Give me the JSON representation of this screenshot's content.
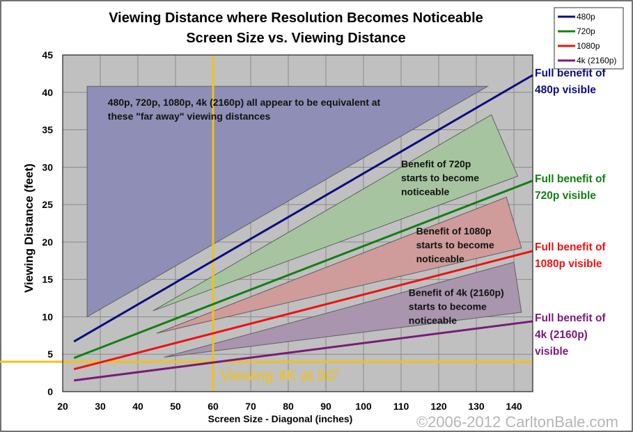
{
  "chart_data": {
    "type": "line",
    "title": "Viewing Distance where Resolution Becomes Noticeable",
    "subtitle": "Screen Size vs. Viewing Distance",
    "xlabel": "Screen Size - Diagonal (inches)",
    "ylabel": "Viewing Distance (feet)",
    "xlim": [
      20,
      145
    ],
    "ylim": [
      0,
      45
    ],
    "x_ticks": [
      20,
      30,
      40,
      50,
      60,
      70,
      80,
      90,
      100,
      110,
      120,
      130,
      140
    ],
    "y_ticks": [
      0,
      5,
      10,
      15,
      20,
      25,
      30,
      35,
      40,
      45
    ],
    "grid": true,
    "legend_position": "top-right",
    "series": [
      {
        "name": "480p",
        "color": "#0c0c80",
        "x": [
          23,
          145
        ],
        "y": [
          6.7,
          42.3
        ]
      },
      {
        "name": "720p",
        "color": "#118011",
        "x": [
          23,
          145
        ],
        "y": [
          4.5,
          28.2
        ]
      },
      {
        "name": "1080p",
        "color": "#ee1111",
        "x": [
          23,
          145
        ],
        "y": [
          3.0,
          18.8
        ]
      },
      {
        "name": "4k (2160p)",
        "color": "#7a1a7a",
        "x": [
          23,
          145
        ],
        "y": [
          1.5,
          9.4
        ]
      }
    ],
    "regions": [
      {
        "id": "all-equivalent",
        "fill": "#8e8eb6",
        "points": [
          [
            26.5,
            10
          ],
          [
            26.5,
            40.8
          ],
          [
            133,
            40.8
          ]
        ],
        "text_lines": [
          "480p, 720p, 1080p, 4k (2160p) all appear to be equivalent at",
          "these \"far away\" viewing distances"
        ],
        "text_pos": [
          32,
          38.2
        ]
      },
      {
        "id": "benefit-720p",
        "fill": "#a6c4a0",
        "points": [
          [
            44,
            10.8
          ],
          [
            134,
            37
          ],
          [
            141,
            28.8
          ]
        ],
        "text_lines": [
          "Benefit of 720p",
          "starts to become",
          "noticeable"
        ],
        "text_pos": [
          110,
          30
        ]
      },
      {
        "id": "benefit-1080p",
        "fill": "#cf9b9b",
        "points": [
          [
            45,
            7.8
          ],
          [
            138,
            26
          ],
          [
            142,
            19.2
          ]
        ],
        "text_lines": [
          "Benefit of 1080p",
          "starts to become",
          "noticeable"
        ],
        "text_pos": [
          114,
          21
        ]
      },
      {
        "id": "benefit-4k",
        "fill": "#a995ae",
        "points": [
          [
            47,
            4.6
          ],
          [
            140,
            17.3
          ],
          [
            142,
            10.6
          ]
        ],
        "text_lines": [
          "Benefit of 4k (2160p)",
          "starts to become",
          "noticeable"
        ],
        "text_pos": [
          112,
          12.8
        ]
      }
    ],
    "end_labels": [
      {
        "series": "480p",
        "lines": [
          "Full benefit of",
          "480p visible"
        ],
        "color": "#0c0c80"
      },
      {
        "series": "720p",
        "lines": [
          "Full benefit of",
          "720p visible"
        ],
        "color": "#118011"
      },
      {
        "series": "1080p",
        "lines": [
          "Full benefit of",
          "1080p visible"
        ],
        "color": "#ee1111"
      },
      {
        "series": "4k (2160p)",
        "lines": [
          "Full benefit of",
          "4k (2160p)",
          "visible"
        ],
        "color": "#7a1a7a"
      }
    ],
    "reference": {
      "x": 60,
      "y": 4,
      "color": "#f2c215",
      "label": "Viewing 4K at 60”"
    },
    "plot_background": "#c0c0c0"
  },
  "copyright": "©2006-2012 CarltonBale.com"
}
